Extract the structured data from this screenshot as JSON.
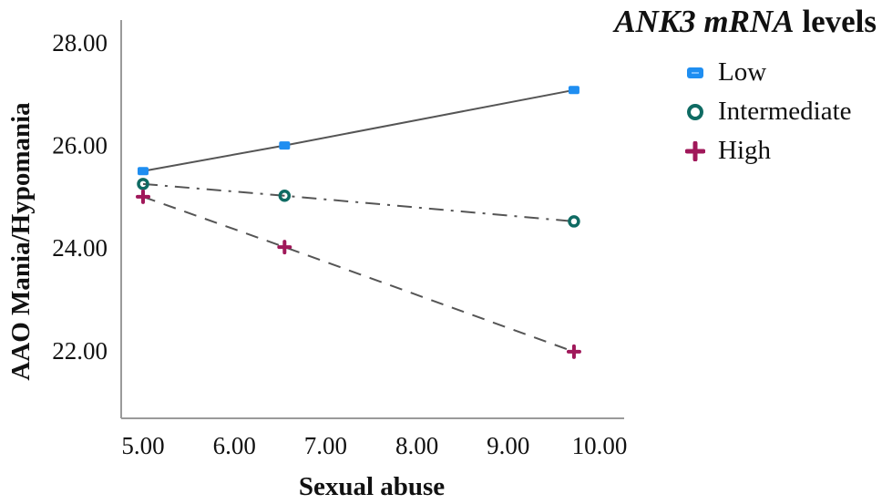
{
  "chart_data": {
    "type": "line",
    "title": "ANK3 mRNA levels",
    "xlabel": "Sexual abuse",
    "ylabel": "AAO Mania/Hypomania",
    "xlim": [
      5.0,
      10.0
    ],
    "ylim": [
      20.7,
      28.6
    ],
    "xticks": [
      "5.00",
      "6.00",
      "7.00",
      "8.00",
      "9.00",
      "10.00"
    ],
    "yticks": [
      "22.00",
      "24.00",
      "26.00",
      "28.00"
    ],
    "grid": false,
    "legend_position": "top-right",
    "x": [
      5.0,
      6.55,
      9.72
    ],
    "series": [
      {
        "name": "Low",
        "values": [
          25.5,
          26.0,
          27.08
        ],
        "color": "#1f8ef1",
        "marker": "square",
        "line": "solid"
      },
      {
        "name": "Intermediate",
        "values": [
          25.25,
          25.02,
          24.52
        ],
        "color": "#0f6b63",
        "marker": "circle",
        "line": "dash-dot"
      },
      {
        "name": "High",
        "values": [
          25.0,
          24.02,
          21.98
        ],
        "color": "#a0185a",
        "marker": "plus",
        "line": "dashed"
      }
    ]
  },
  "legend": {
    "title_italic": "ANK3 mRNA",
    "title_rest": " levels",
    "items": [
      {
        "label": "Low"
      },
      {
        "label": "Intermediate"
      },
      {
        "label": "High"
      }
    ]
  },
  "axes": {
    "x_title": "Sexual abuse",
    "y_title": "AAO Mania/Hypomania"
  }
}
